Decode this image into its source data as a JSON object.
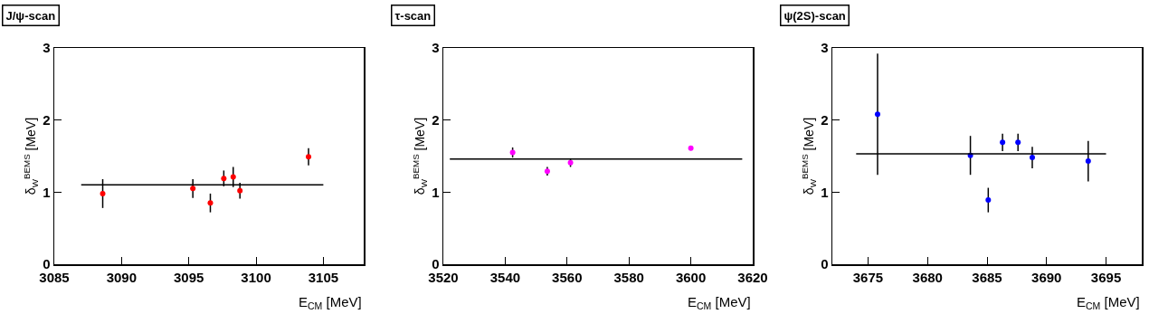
{
  "chart_data": [
    {
      "type": "scatter",
      "title": "J/ψ-scan",
      "xlabel": "E$_{CM}$ [MeV]",
      "ylabel": "δ$_{W}$$^{BEMS}$ [MeV]",
      "xlim": [
        3085,
        3108
      ],
      "xticks": [
        3085,
        3090,
        3095,
        3100,
        3105
      ],
      "ylim": [
        0,
        3
      ],
      "yticks": [
        0,
        1,
        2,
        3
      ],
      "grid": false,
      "series": [
        {
          "marker": "circle",
          "color": "#ff0000",
          "x": [
            3088.6,
            3095.3,
            3096.6,
            3097.6,
            3098.3,
            3098.8,
            3103.9
          ],
          "values": [
            0.98,
            1.05,
            0.85,
            1.19,
            1.21,
            1.02,
            1.49
          ],
          "errors": [
            0.2,
            0.13,
            0.13,
            0.11,
            0.14,
            0.11,
            0.12
          ]
        },
        {
          "type": "line",
          "marker": "none",
          "color": "#000000",
          "line_style": "solid",
          "x": [
            3087.0,
            3105.0
          ],
          "values": [
            1.1,
            1.1
          ]
        }
      ]
    },
    {
      "type": "scatter",
      "title": "τ-scan",
      "xlabel": "E$_{CM}$ [MeV]",
      "ylabel": "δ$_{W}$$^{BEMS}$ [MeV]",
      "xlim": [
        3520,
        3620
      ],
      "xticks": [
        3520,
        3540,
        3560,
        3580,
        3600,
        3620
      ],
      "ylim": [
        0,
        3
      ],
      "yticks": [
        0,
        1,
        2,
        3
      ],
      "grid": false,
      "series": [
        {
          "marker": "circle",
          "color": "#ff00ff",
          "x": [
            3542.4,
            3553.6,
            3561.1,
            3600.0
          ],
          "values": [
            1.55,
            1.29,
            1.41,
            1.61
          ],
          "errors": [
            0.07,
            0.06,
            0.06,
            null
          ]
        },
        {
          "type": "line",
          "marker": "none",
          "color": "#000000",
          "line_style": "solid",
          "x": [
            3522.1,
            3616.6
          ],
          "values": [
            1.46,
            1.46
          ]
        }
      ]
    },
    {
      "type": "scatter",
      "title": "ψ(2S)-scan",
      "xlabel": "E$_{CM}$ [MeV]",
      "ylabel": "δ$_{W}$$^{BEMS}$ [MeV]",
      "xlim": [
        3672,
        3698
      ],
      "xticks": [
        3675,
        3680,
        3685,
        3690,
        3695
      ],
      "ylim": [
        0,
        3
      ],
      "yticks": [
        0,
        1,
        2,
        3
      ],
      "grid": false,
      "series": [
        {
          "marker": "circle",
          "color": "#0000ff",
          "x": [
            3675.8,
            3683.6,
            3685.1,
            3686.3,
            3687.6,
            3688.8,
            3693.5
          ],
          "values": [
            2.08,
            1.51,
            0.89,
            1.69,
            1.69,
            1.48,
            1.43
          ],
          "errors": [
            0.84,
            0.27,
            0.17,
            0.12,
            0.12,
            0.15,
            0.28
          ]
        },
        {
          "type": "line",
          "marker": "none",
          "color": "#000000",
          "line_style": "solid",
          "x": [
            3674.0,
            3695.0
          ],
          "values": [
            1.53,
            1.53
          ]
        }
      ]
    }
  ]
}
